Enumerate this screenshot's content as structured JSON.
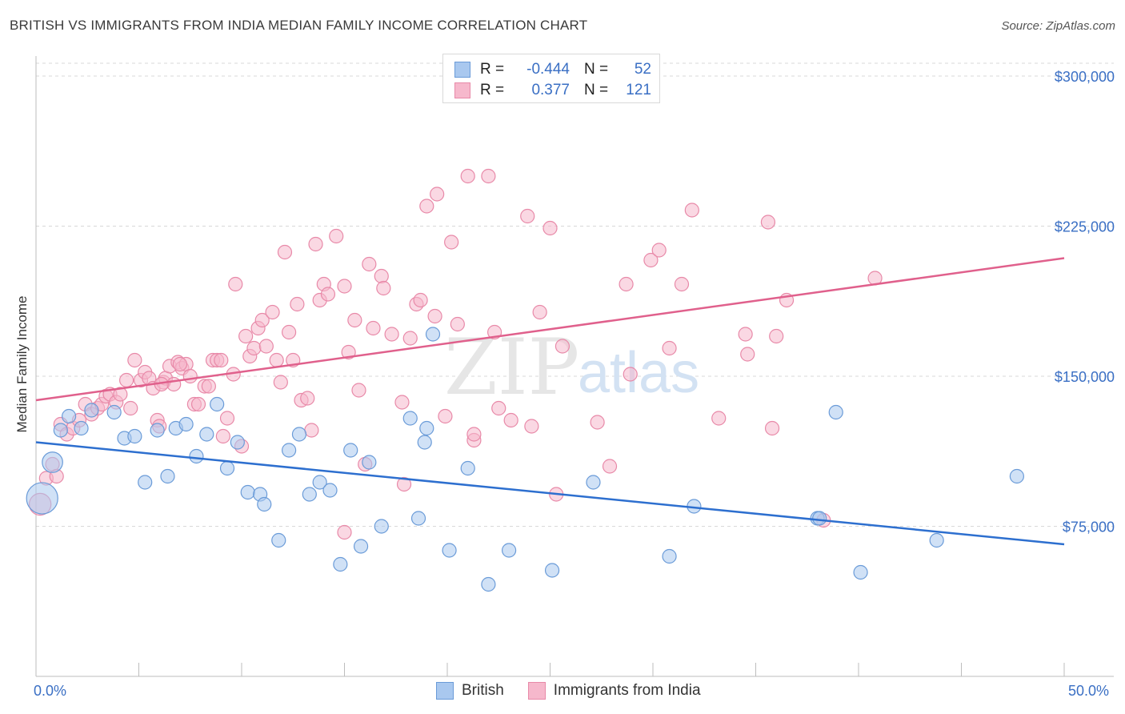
{
  "title": "BRITISH VS IMMIGRANTS FROM INDIA MEDIAN FAMILY INCOME CORRELATION CHART",
  "source": "Source: ZipAtlas.com",
  "watermark": {
    "zip": "ZIP",
    "atlas": "atlas"
  },
  "legend_top": {
    "rows": [
      {
        "r_label": "R =",
        "r_value": "-0.444",
        "n_label": "N =",
        "n_value": "52"
      },
      {
        "r_label": "R =",
        "r_value": "0.377",
        "n_label": "N =",
        "n_value": "121"
      }
    ]
  },
  "legend_bottom": {
    "british": "British",
    "india": "Immigrants from India"
  },
  "x_axis": {
    "min_label": "0.0%",
    "max_label": "50.0%"
  },
  "colors": {
    "british_fill": "#a9c8ef",
    "british_stroke": "#6a9bd8",
    "british_line": "#2d6fcf",
    "india_fill": "#f6b8cc",
    "india_stroke": "#e889a8",
    "india_line": "#e0608c",
    "axis_text": "#3a6fc4",
    "grid": "#d8d8d8"
  },
  "chart_data": {
    "type": "scatter",
    "title": "BRITISH VS IMMIGRANTS FROM INDIA MEDIAN FAMILY INCOME CORRELATION CHART",
    "xlabel": "",
    "ylabel": "Median Family Income",
    "xlim": [
      0,
      50
    ],
    "ylim": [
      0,
      310000
    ],
    "y_ticks": [
      {
        "value": 75000,
        "label": "$75,000"
      },
      {
        "value": 150000,
        "label": "$150,000"
      },
      {
        "value": 225000,
        "label": "$225,000"
      },
      {
        "value": 300000,
        "label": "$300,000"
      }
    ],
    "series": [
      {
        "name": "British",
        "r": -0.444,
        "n": 52,
        "trend": {
          "x": [
            0,
            50
          ],
          "y": [
            117000,
            66000
          ]
        },
        "points": [
          [
            0.3,
            89000,
            2.3
          ],
          [
            0.8,
            107000,
            1.5
          ],
          [
            1.2,
            123000,
            1
          ],
          [
            1.6,
            130000,
            1
          ],
          [
            2.2,
            124000,
            1
          ],
          [
            2.7,
            133000,
            1
          ],
          [
            3.8,
            132000,
            1
          ],
          [
            4.3,
            119000,
            1
          ],
          [
            4.8,
            120000,
            1
          ],
          [
            5.3,
            97000,
            1
          ],
          [
            5.9,
            123000,
            1
          ],
          [
            6.4,
            100000,
            1
          ],
          [
            6.8,
            124000,
            1
          ],
          [
            7.3,
            126000,
            1
          ],
          [
            7.8,
            110000,
            1
          ],
          [
            8.3,
            121000,
            1
          ],
          [
            8.8,
            136000,
            1
          ],
          [
            9.3,
            104000,
            1
          ],
          [
            9.8,
            117000,
            1
          ],
          [
            10.3,
            92000,
            1
          ],
          [
            10.9,
            91000,
            1
          ],
          [
            11.1,
            86000,
            1
          ],
          [
            11.8,
            68000,
            1
          ],
          [
            12.3,
            113000,
            1
          ],
          [
            12.8,
            121000,
            1
          ],
          [
            13.3,
            91000,
            1
          ],
          [
            13.8,
            97000,
            1
          ],
          [
            14.3,
            93000,
            1
          ],
          [
            14.8,
            56000,
            1
          ],
          [
            15.3,
            113000,
            1
          ],
          [
            15.8,
            65000,
            1
          ],
          [
            16.2,
            107000,
            1
          ],
          [
            16.8,
            75000,
            1
          ],
          [
            18.2,
            129000,
            1
          ],
          [
            18.6,
            79000,
            1
          ],
          [
            18.9,
            117000,
            1
          ],
          [
            19.3,
            171000,
            1
          ],
          [
            19.0,
            124000,
            1
          ],
          [
            20.1,
            63000,
            1
          ],
          [
            21.0,
            104000,
            1
          ],
          [
            22.0,
            46000,
            1
          ],
          [
            23.0,
            63000,
            1
          ],
          [
            25.1,
            53000,
            1
          ],
          [
            27.1,
            97000,
            1
          ],
          [
            30.8,
            60000,
            1
          ],
          [
            32.0,
            85000,
            1
          ],
          [
            38.0,
            79000,
            1
          ],
          [
            38.1,
            79000,
            1
          ],
          [
            38.9,
            132000,
            1
          ],
          [
            40.1,
            52000,
            1
          ],
          [
            43.8,
            68000,
            1
          ],
          [
            47.7,
            100000,
            1
          ]
        ]
      },
      {
        "name": "Immigrants from India",
        "r": 0.377,
        "n": 121,
        "trend": {
          "x": [
            0,
            50
          ],
          "y": [
            138000,
            209000
          ]
        },
        "points": [
          [
            0.2,
            86000,
            1.6
          ],
          [
            0.5,
            99000,
            1
          ],
          [
            0.8,
            106000,
            1
          ],
          [
            1.0,
            100000,
            1
          ],
          [
            1.2,
            126000,
            1
          ],
          [
            1.5,
            121000,
            1
          ],
          [
            1.8,
            124000,
            1
          ],
          [
            2.1,
            128000,
            1
          ],
          [
            2.4,
            136000,
            1
          ],
          [
            2.7,
            131000,
            1
          ],
          [
            3.0,
            134000,
            1
          ],
          [
            3.2,
            136000,
            1
          ],
          [
            3.4,
            140000,
            1
          ],
          [
            3.6,
            141000,
            1
          ],
          [
            3.9,
            137000,
            1
          ],
          [
            4.1,
            141000,
            1
          ],
          [
            4.4,
            148000,
            1
          ],
          [
            4.6,
            134000,
            1
          ],
          [
            4.8,
            158000,
            1
          ],
          [
            5.1,
            148000,
            1
          ],
          [
            5.3,
            152000,
            1
          ],
          [
            5.5,
            149000,
            1
          ],
          [
            5.7,
            144000,
            1
          ],
          [
            5.9,
            128000,
            1
          ],
          [
            6.0,
            125000,
            1
          ],
          [
            6.2,
            147000,
            1
          ],
          [
            6.3,
            149000,
            1
          ],
          [
            6.5,
            155000,
            1
          ],
          [
            6.7,
            146000,
            1
          ],
          [
            6.9,
            157000,
            1
          ],
          [
            7.1,
            154000,
            1
          ],
          [
            7.3,
            156000,
            1
          ],
          [
            7.5,
            150000,
            1
          ],
          [
            7.7,
            136000,
            1
          ],
          [
            7.9,
            136000,
            1
          ],
          [
            8.2,
            145000,
            1
          ],
          [
            8.4,
            145000,
            1
          ],
          [
            8.6,
            158000,
            1
          ],
          [
            8.8,
            158000,
            1
          ],
          [
            9.1,
            120000,
            1
          ],
          [
            9.3,
            129000,
            1
          ],
          [
            9.6,
            151000,
            1
          ],
          [
            9.7,
            196000,
            1
          ],
          [
            10.0,
            115000,
            1
          ],
          [
            10.2,
            170000,
            1
          ],
          [
            10.4,
            160000,
            1
          ],
          [
            10.6,
            164000,
            1
          ],
          [
            10.8,
            174000,
            1
          ],
          [
            11.0,
            178000,
            1
          ],
          [
            11.2,
            165000,
            1
          ],
          [
            11.5,
            182000,
            1
          ],
          [
            11.7,
            158000,
            1
          ],
          [
            11.9,
            147000,
            1
          ],
          [
            12.1,
            212000,
            1
          ],
          [
            12.3,
            172000,
            1
          ],
          [
            12.5,
            158000,
            1
          ],
          [
            12.7,
            186000,
            1
          ],
          [
            12.9,
            138000,
            1
          ],
          [
            13.2,
            139000,
            1
          ],
          [
            13.4,
            123000,
            1
          ],
          [
            13.6,
            216000,
            1
          ],
          [
            13.8,
            188000,
            1
          ],
          [
            14.0,
            196000,
            1
          ],
          [
            14.2,
            191000,
            1
          ],
          [
            14.6,
            220000,
            1
          ],
          [
            15.0,
            195000,
            1
          ],
          [
            15.2,
            162000,
            1
          ],
          [
            15.5,
            178000,
            1
          ],
          [
            15.7,
            143000,
            1
          ],
          [
            16.0,
            106000,
            1
          ],
          [
            16.2,
            206000,
            1
          ],
          [
            16.4,
            174000,
            1
          ],
          [
            16.8,
            200000,
            1
          ],
          [
            16.9,
            194000,
            1
          ],
          [
            17.3,
            171000,
            1
          ],
          [
            17.8,
            137000,
            1
          ],
          [
            17.9,
            96000,
            1
          ],
          [
            18.2,
            169000,
            1
          ],
          [
            18.5,
            186000,
            1
          ],
          [
            18.7,
            188000,
            1
          ],
          [
            19.0,
            235000,
            1
          ],
          [
            19.4,
            180000,
            1
          ],
          [
            19.5,
            241000,
            1
          ],
          [
            19.9,
            130000,
            1
          ],
          [
            20.2,
            217000,
            1
          ],
          [
            20.5,
            176000,
            1
          ],
          [
            21.0,
            250000,
            1
          ],
          [
            21.3,
            118000,
            1
          ],
          [
            22.0,
            250000,
            1
          ],
          [
            22.3,
            172000,
            1
          ],
          [
            22.5,
            134000,
            1
          ],
          [
            23.1,
            128000,
            1
          ],
          [
            23.9,
            230000,
            1
          ],
          [
            24.1,
            125000,
            1
          ],
          [
            24.5,
            182000,
            1
          ],
          [
            25.0,
            224000,
            1
          ],
          [
            25.3,
            91000,
            1
          ],
          [
            25.6,
            165000,
            1
          ],
          [
            27.3,
            127000,
            1
          ],
          [
            27.9,
            105000,
            1
          ],
          [
            28.7,
            196000,
            1
          ],
          [
            28.9,
            151000,
            1
          ],
          [
            29.9,
            208000,
            1
          ],
          [
            30.3,
            213000,
            1
          ],
          [
            30.8,
            164000,
            1
          ],
          [
            31.4,
            196000,
            1
          ],
          [
            31.9,
            233000,
            1
          ],
          [
            33.2,
            129000,
            1
          ],
          [
            34.5,
            171000,
            1
          ],
          [
            34.6,
            161000,
            1
          ],
          [
            35.6,
            227000,
            1
          ],
          [
            35.8,
            124000,
            1
          ],
          [
            36.0,
            170000,
            1
          ],
          [
            36.5,
            188000,
            1
          ],
          [
            38.3,
            78000,
            1
          ],
          [
            40.8,
            199000,
            1
          ],
          [
            15.0,
            72000,
            1
          ],
          [
            21.3,
            121000,
            1
          ],
          [
            7.0,
            156000,
            1
          ],
          [
            6.1,
            146000,
            1
          ],
          [
            9.0,
            158000,
            1
          ]
        ]
      }
    ]
  }
}
